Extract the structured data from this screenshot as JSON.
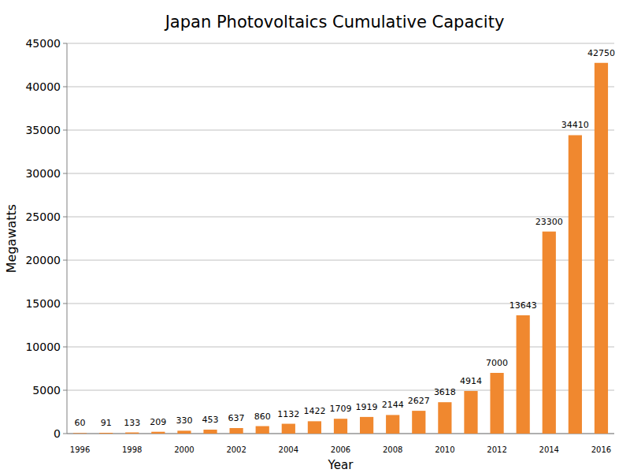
{
  "chart_data": {
    "type": "bar",
    "title": "Japan Photovoltaics Cumulative Capacity",
    "x_label": "Year",
    "y_label": "Megawatts",
    "categories": [
      "1996",
      null,
      "1998",
      null,
      "2000",
      null,
      "2002",
      null,
      "2004",
      null,
      "2006",
      null,
      "2008",
      null,
      "2010",
      null,
      "2012",
      null,
      "2014",
      null,
      "2016"
    ],
    "values": [
      60,
      91,
      133,
      209,
      330,
      453,
      637,
      860,
      1132,
      1422,
      1709,
      1919,
      2144,
      2627,
      3618,
      4914,
      7000,
      13643,
      23300,
      34410,
      42750
    ],
    "color": "#f0882f",
    "ylim": [
      0,
      45000
    ],
    "yticks": [
      0,
      5000,
      10000,
      15000,
      20000,
      25000,
      30000,
      35000,
      40000,
      45000
    ],
    "grid": true,
    "data_labels": true
  }
}
